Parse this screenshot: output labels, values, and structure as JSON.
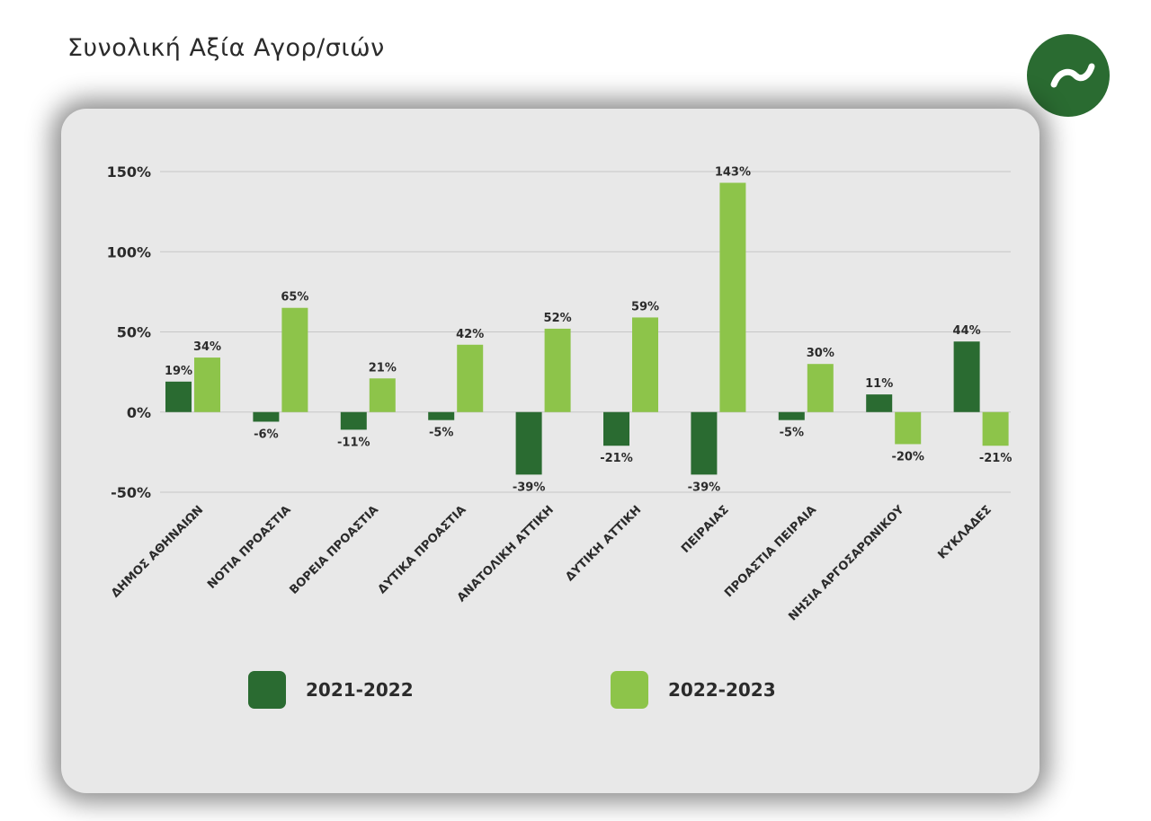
{
  "page": {
    "title": "Συνολική Αξία Αγορ/σιών"
  },
  "logo": {
    "icon": "tilde-logo-icon"
  },
  "colors": {
    "series1": "#2a6b31",
    "series2": "#8dc44a",
    "text": "#2b2b2b",
    "grid": "#c6c6c6"
  },
  "chart_data": {
    "type": "bar",
    "title": "Συνολική Αξία Αγορ/σιών",
    "xlabel": "",
    "ylabel": "",
    "ylim": [
      -50,
      150
    ],
    "yticks": [
      150,
      100,
      50,
      0,
      -50
    ],
    "ytick_labels": [
      "150%",
      "100%",
      "50%",
      "0%",
      "-50%"
    ],
    "grid": true,
    "legend_position": "bottom",
    "categories": [
      "ΔΗΜΟΣ ΑΘΗΝΑΙΩΝ",
      "ΝΟΤΙΑ ΠΡΟΑΣΤΙΑ",
      "ΒΟΡΕΙΑ ΠΡΟΑΣΤΙΑ",
      "ΔΥΤΙΚΑ ΠΡΟΑΣΤΙΑ",
      "ΑΝΑΤΟΛΙΚΗ ΑΤΤΙΚΗ",
      "ΔΥΤΙΚΗ ΑΤΤΙΚΗ",
      "ΠΕΙΡΑΙΑΣ",
      "ΠΡΟΑΣΤΙΑ ΠΕΙΡΑΙΑ",
      "ΝΗΣΙΑ ΑΡΓΟΣΑΡΩΝΙΚΟΥ",
      "ΚΥΚΛΑΔΕΣ"
    ],
    "series": [
      {
        "name": "2021-2022",
        "values": [
          19,
          -6,
          -11,
          -5,
          -39,
          -21,
          -39,
          -5,
          11,
          44
        ],
        "labels": [
          "19%",
          "-6%",
          "-11%",
          "-5%",
          "-39%",
          "-21%",
          "-39%",
          "-5%",
          "11%",
          "44%"
        ]
      },
      {
        "name": "2022-2023",
        "values": [
          34,
          65,
          21,
          42,
          52,
          59,
          143,
          30,
          -20,
          -21
        ],
        "labels": [
          "34%",
          "65%",
          "21%",
          "42%",
          "52%",
          "59%",
          "143%",
          "30%",
          "-20%",
          "-21%"
        ]
      }
    ]
  }
}
